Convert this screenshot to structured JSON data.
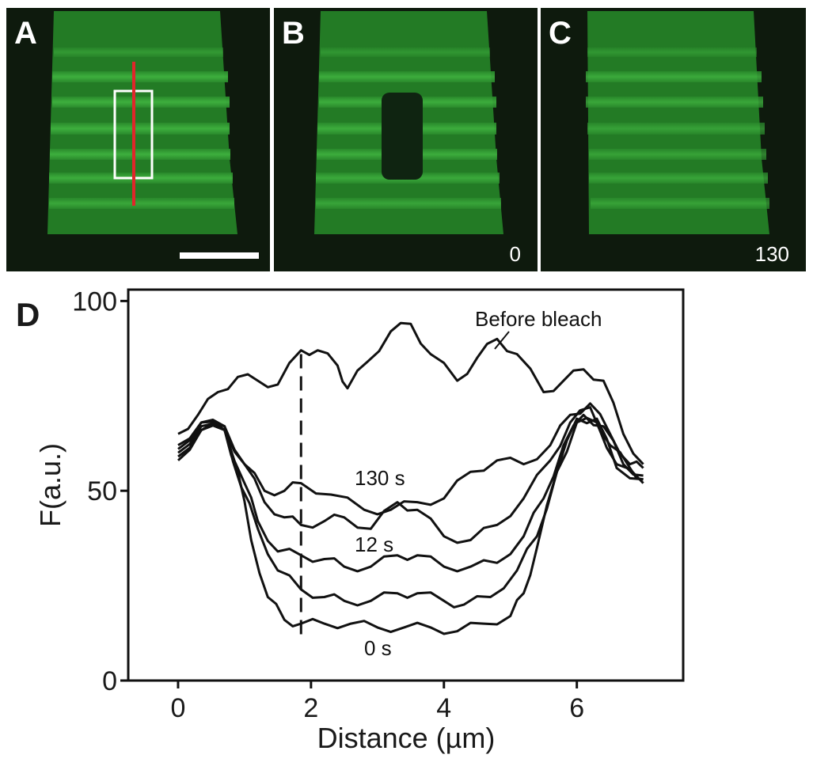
{
  "panels": [
    {
      "label": "A",
      "time": ""
    },
    {
      "label": "B",
      "time": "0"
    },
    {
      "label": "C",
      "time": "130"
    }
  ],
  "colors": {
    "micro_bg": "#0e1a0d",
    "band_bright": "#3cab3c",
    "band_dim": "#227a24",
    "roi": "#ffffff",
    "line_scan": "#e0262a",
    "trace": "#111111"
  },
  "plot": {
    "panel_label": "D",
    "xlabel": "Distance (µm)",
    "ylabel": "F(a.u.)",
    "x_ticks": [
      "0",
      "2",
      "4",
      "6"
    ],
    "y_ticks": [
      "0",
      "50",
      "100"
    ],
    "annotations": {
      "before": "Before bleach",
      "t130": "130 s",
      "t12": "12 s",
      "t0": "0 s"
    }
  },
  "chart_data": {
    "type": "line",
    "xlim": [
      -0.75,
      7.6
    ],
    "ylim": [
      0,
      103
    ],
    "grid": false,
    "legend": "none",
    "reference_line_x": 1.85,
    "series": [
      {
        "name": "Before bleach",
        "x": [
          0,
          0.3,
          0.6,
          0.9,
          1.2,
          1.5,
          1.85,
          2.1,
          2.4,
          2.55,
          2.85,
          3.2,
          3.5,
          3.8,
          4.2,
          4.5,
          4.8,
          5.1,
          5.5,
          5.8,
          6.1,
          6.4,
          6.7,
          7.0
        ],
        "y": [
          65,
          70,
          76,
          80,
          79,
          78,
          87,
          87,
          83,
          77,
          84,
          92,
          94,
          86,
          79,
          85,
          90,
          86,
          76,
          79,
          82,
          79,
          65,
          57
        ]
      },
      {
        "name": "130 s",
        "x": [
          0,
          0.35,
          0.7,
          1.0,
          1.3,
          1.6,
          1.85,
          2.3,
          2.8,
          3.2,
          3.6,
          4.0,
          4.4,
          4.8,
          5.2,
          5.6,
          5.9,
          6.2,
          6.5,
          6.8,
          7.0
        ],
        "y": [
          62,
          68,
          66,
          57,
          50,
          50,
          52,
          49,
          45,
          45,
          47,
          48,
          55,
          58,
          57,
          62,
          70,
          73,
          65,
          57,
          56
        ]
      },
      {
        "name": "",
        "x": [
          0,
          0.35,
          0.7,
          1.0,
          1.3,
          1.6,
          1.85,
          2.2,
          2.5,
          2.9,
          3.3,
          3.6,
          4.0,
          4.4,
          4.8,
          5.2,
          5.6,
          5.9,
          6.2,
          6.5,
          6.8,
          7.0
        ],
        "y": [
          61,
          68,
          67,
          57,
          47,
          43,
          41,
          42,
          43,
          40,
          47,
          45,
          38,
          37,
          41,
          48,
          58,
          68,
          72,
          62,
          56,
          53
        ]
      },
      {
        "name": "12 s",
        "x": [
          0,
          0.35,
          0.7,
          1.0,
          1.2,
          1.5,
          1.85,
          2.2,
          2.5,
          2.9,
          3.3,
          3.6,
          4.0,
          4.4,
          4.8,
          5.2,
          5.5,
          5.8,
          6.1,
          6.4,
          6.7,
          7.0
        ],
        "y": [
          60,
          67,
          66,
          52,
          42,
          34,
          33,
          32,
          30,
          30,
          33,
          33,
          30,
          30,
          31,
          38,
          48,
          62,
          70,
          67,
          57,
          54
        ]
      },
      {
        "name": "",
        "x": [
          0,
          0.35,
          0.7,
          0.95,
          1.2,
          1.5,
          1.85,
          2.2,
          2.5,
          2.9,
          3.3,
          3.6,
          4.0,
          4.3,
          4.7,
          5.1,
          5.4,
          5.7,
          6.0,
          6.3,
          6.6,
          7.0
        ],
        "y": [
          59,
          66,
          67,
          51,
          40,
          29,
          24,
          22,
          21,
          21,
          23,
          23,
          21,
          20,
          22,
          29,
          38,
          55,
          69,
          69,
          56,
          53
        ]
      },
      {
        "name": "0 s",
        "x": [
          0,
          0.35,
          0.7,
          0.9,
          1.1,
          1.35,
          1.6,
          1.85,
          2.2,
          2.6,
          3.0,
          3.4,
          3.8,
          4.2,
          4.6,
          5.0,
          5.2,
          5.4,
          5.7,
          6.0,
          6.3,
          6.6,
          7.0
        ],
        "y": [
          58,
          66,
          66,
          55,
          37,
          22,
          16,
          15,
          15,
          15,
          14,
          14,
          14,
          13,
          15,
          17,
          23,
          35,
          55,
          68,
          68,
          57,
          52
        ]
      }
    ]
  }
}
